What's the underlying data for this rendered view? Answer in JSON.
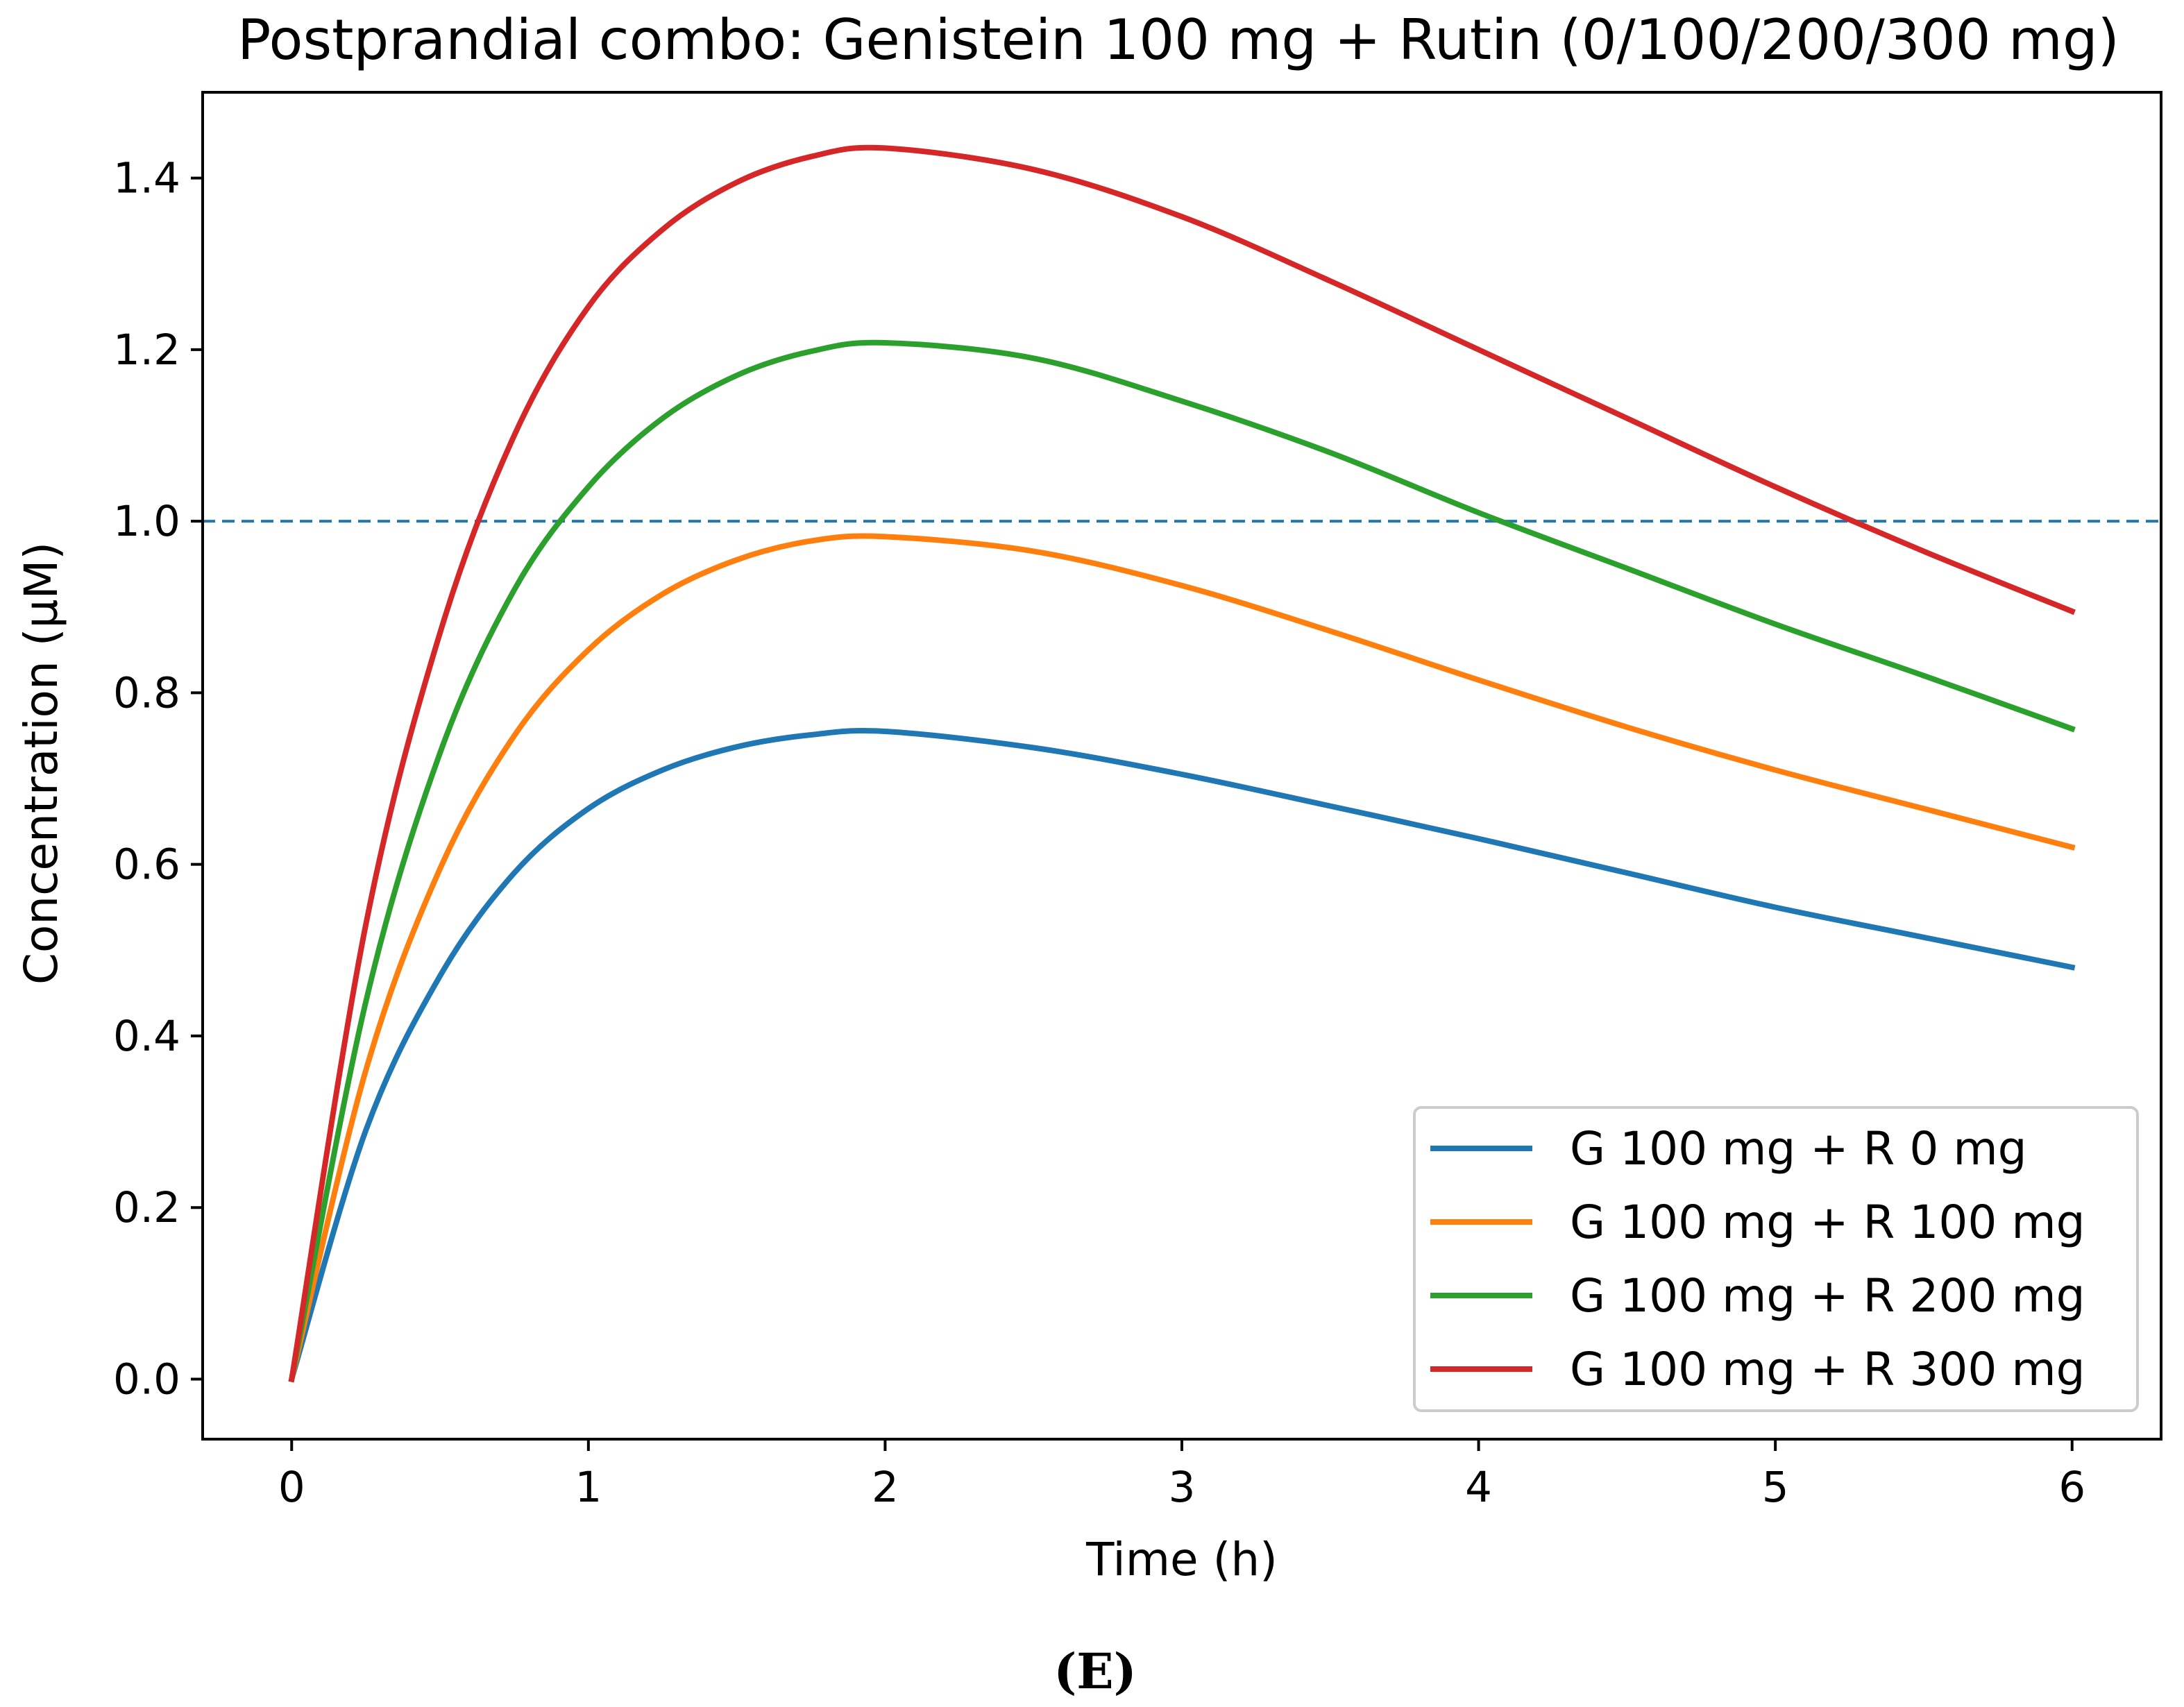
{
  "chart_data": {
    "type": "line",
    "title": "Postprandial combo: Genistein 100 mg + Rutin (0/100/200/300 mg)",
    "xlabel": "Time (h)",
    "ylabel": "Concentration (µM)",
    "xlim": [
      -0.3,
      6.3
    ],
    "ylim": [
      -0.07,
      1.5
    ],
    "xticks": [
      0,
      1,
      2,
      3,
      4,
      5,
      6
    ],
    "xtick_labels": [
      "0",
      "1",
      "2",
      "3",
      "4",
      "5",
      "6"
    ],
    "yticks": [
      0.0,
      0.2,
      0.4,
      0.6,
      0.8,
      1.0,
      1.2,
      1.4
    ],
    "ytick_labels": [
      "0.0",
      "0.2",
      "0.4",
      "0.6",
      "0.8",
      "1.0",
      "1.2",
      "1.4"
    ],
    "grid": false,
    "legend_position": "lower-right",
    "x": [
      0,
      0.25,
      0.5,
      0.75,
      1.0,
      1.25,
      1.5,
      1.75,
      2.0,
      2.5,
      3.0,
      3.5,
      4.0,
      4.5,
      5.0,
      5.5,
      6.0
    ],
    "series": [
      {
        "name": "G 100 mg + R 0 mg",
        "color": "#1f77b4",
        "values": [
          0.0,
          0.29,
          0.47,
          0.59,
          0.665,
          0.71,
          0.737,
          0.751,
          0.755,
          0.736,
          0.705,
          0.668,
          0.63,
          0.59,
          0.55,
          0.515,
          0.48
        ]
      },
      {
        "name": "G 100 mg + R 100 mg",
        "color": "#ff7f0e",
        "values": [
          0.0,
          0.36,
          0.595,
          0.75,
          0.85,
          0.915,
          0.955,
          0.977,
          0.982,
          0.965,
          0.925,
          0.872,
          0.815,
          0.76,
          0.71,
          0.665,
          0.62
        ]
      },
      {
        "name": "G 100 mg + R 200 mg",
        "color": "#2ca02c",
        "values": [
          0.0,
          0.44,
          0.73,
          0.92,
          1.04,
          1.12,
          1.17,
          1.198,
          1.208,
          1.19,
          1.14,
          1.08,
          1.01,
          0.945,
          0.88,
          0.82,
          0.758
        ]
      },
      {
        "name": "G 100 mg + R 300 mg",
        "color": "#d62728",
        "values": [
          0.0,
          0.53,
          0.87,
          1.1,
          1.25,
          1.34,
          1.395,
          1.425,
          1.435,
          1.41,
          1.355,
          1.28,
          1.2,
          1.12,
          1.04,
          0.965,
          0.895
        ]
      }
    ],
    "reference_line": {
      "y": 1.0,
      "style": "dashed",
      "color": "#1f77b4"
    },
    "panel_label": "(E)"
  }
}
